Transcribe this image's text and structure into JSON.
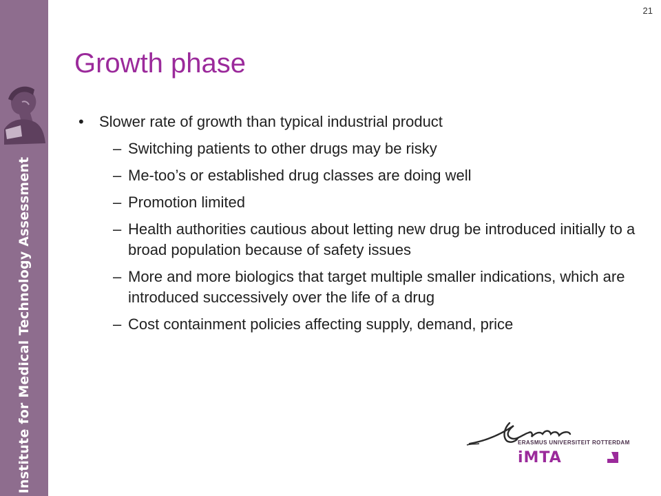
{
  "slide": {
    "number": "21",
    "title": "Growth phase"
  },
  "sidebar": {
    "institute_name": "Institute for Medical Technology Assessment",
    "background_color": "#8e6d8e"
  },
  "bullets": {
    "main_marker": "•",
    "sub_marker": "–",
    "main": "Slower rate of growth than typical industrial product",
    "sub": [
      "Switching patients to other drugs may be risky",
      "Me-too’s or established drug classes are doing well",
      "Promotion limited",
      "Health authorities cautious about letting new drug be introduced initially to a broad population because of safety issues",
      "More and more biologics that target multiple smaller indications, which are introduced successively over the life of a drug",
      "Cost containment policies affecting supply, demand, price"
    ]
  },
  "logo": {
    "university": "ERASMUS UNIVERSITEIT ROTTERDAM",
    "imta": "iMTA",
    "title_color": "#9b2a9b"
  }
}
